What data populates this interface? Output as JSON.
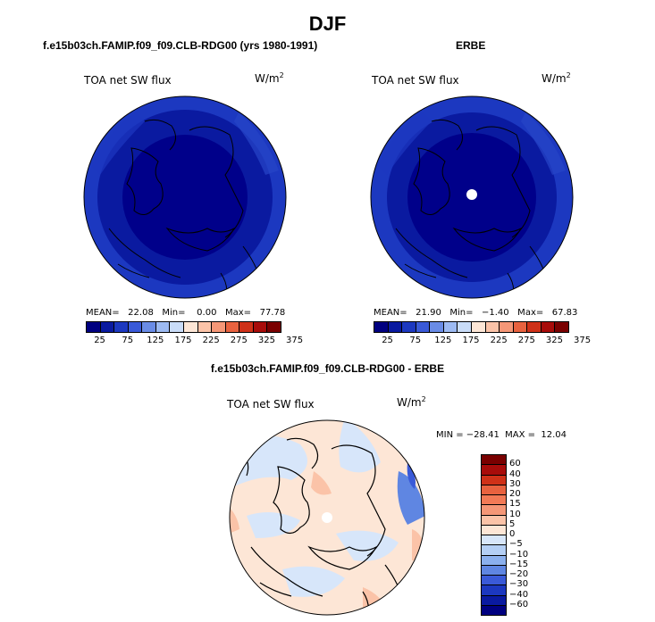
{
  "title": "DJF",
  "panels": [
    {
      "heading": "f.e15b03ch.FAMIP.f09_f09.CLB-RDG00 (yrs 1980-1991)",
      "variable": "TOA net SW flux",
      "unit_base": "W/m",
      "unit_exp": "2",
      "stats": "MEAN=   22.08   Min=    0.00   Max=   77.78",
      "has_pole_hole": false
    },
    {
      "heading": "ERBE",
      "variable": "TOA net SW flux",
      "unit_base": "W/m",
      "unit_exp": "2",
      "stats": "MEAN=   21.90   Min=   −1.40   Max=   67.83",
      "has_pole_hole": true
    }
  ],
  "colorbar_top": {
    "ticks": [
      "25",
      "75",
      "125",
      "175",
      "225",
      "275",
      "325",
      "375"
    ],
    "colors": [
      "#000080",
      "#0a1aa0",
      "#1c38c0",
      "#3a5ad8",
      "#6a8ce6",
      "#9dbaf2",
      "#c9dcf8",
      "#fde6d6",
      "#fbc3a8",
      "#f59777",
      "#e8623f",
      "#cf3118",
      "#a80c0a",
      "#7a0000"
    ]
  },
  "difference": {
    "heading": "f.e15b03ch.FAMIP.f09_f09.CLB-RDG00 - ERBE",
    "variable": "TOA net SW flux",
    "unit_base": "W/m",
    "unit_exp": "2",
    "minmax": "MIN = −28.41  MAX =  12.04",
    "colorbar": {
      "ticks": [
        "60",
        "40",
        "30",
        "20",
        "15",
        "10",
        "5",
        "0",
        "−5",
        "−10",
        "−15",
        "−20",
        "−30",
        "−40",
        "−60"
      ],
      "colors": [
        "#7a0000",
        "#a80c0a",
        "#cf3118",
        "#e8623f",
        "#f27a56",
        "#f59777",
        "#fbc3a8",
        "#fde6d6",
        "#d7e6fa",
        "#b4cff5",
        "#8bb0ee",
        "#5f86e2",
        "#3a5ad8",
        "#1c38c0",
        "#0a1aa0",
        "#000080"
      ]
    }
  }
}
